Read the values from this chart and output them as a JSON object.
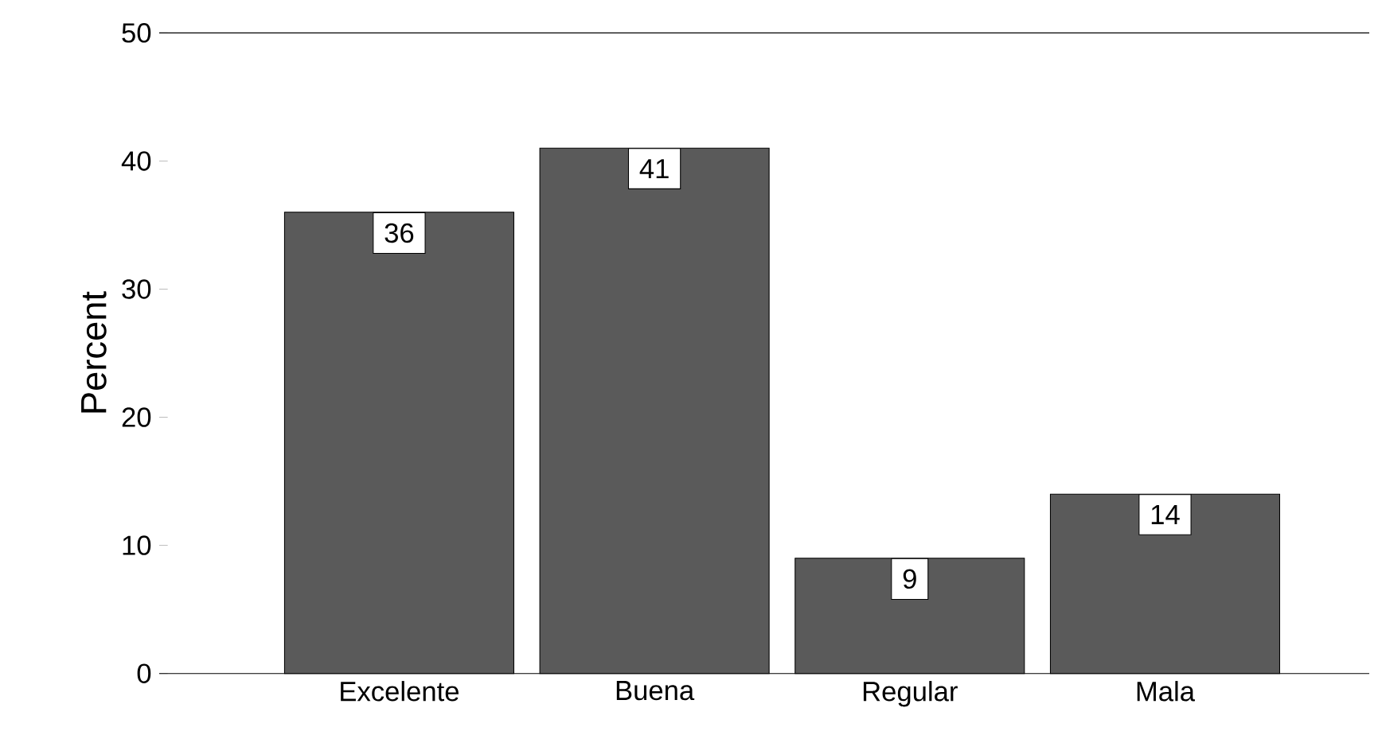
{
  "chart_data": {
    "type": "bar",
    "ylabel": "Percent",
    "categories": [
      "Excelente",
      "Buena",
      "Regular",
      "Mala"
    ],
    "values": [
      36,
      41,
      9,
      14
    ],
    "color": "#5a5a5a",
    "ylim": [
      0,
      50
    ],
    "yticks": [
      0,
      10,
      20,
      30,
      40,
      50
    ],
    "data_labels": true
  }
}
